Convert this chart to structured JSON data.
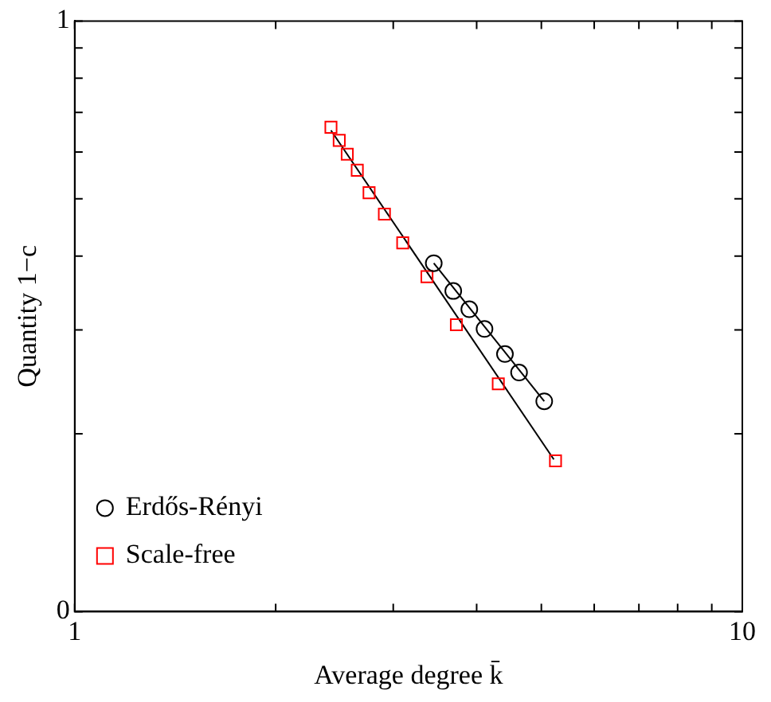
{
  "chart_data": {
    "type": "scatter",
    "xlabel": "Average degree k̄",
    "ylabel": "Quantity 1−c",
    "log": "xy",
    "xlim": [
      1,
      10
    ],
    "ylim": [
      0.1,
      1
    ],
    "xticks": [
      1,
      {
        "value": 2,
        "label": null
      },
      {
        "value": 3,
        "label": null
      },
      {
        "value": 4,
        "label": null
      },
      {
        "value": 5,
        "label": null
      },
      {
        "value": 6,
        "label": null
      },
      {
        "value": 7,
        "label": null
      },
      {
        "value": 8,
        "label": null
      },
      {
        "value": 9,
        "label": null
      },
      10
    ],
    "yticks": [
      {
        "value": 0.1,
        "label": "0"
      },
      {
        "value": 0.2,
        "label": null
      },
      {
        "value": 0.3,
        "label": null
      },
      {
        "value": 0.4,
        "label": null
      },
      {
        "value": 0.5,
        "label": null
      },
      {
        "value": 0.6,
        "label": null
      },
      {
        "value": 0.7,
        "label": null
      },
      {
        "value": 0.8,
        "label": null
      },
      {
        "value": 0.9,
        "label": null
      },
      1
    ],
    "legend": "bottom left",
    "series": [
      {
        "name": "Erdős-Rényi",
        "color": "#000000",
        "marker": "circle",
        "x": [
          3.45,
          3.69,
          3.9,
          4.11,
          4.41,
          4.63,
          5.05
        ],
        "values": [
          0.389,
          0.349,
          0.325,
          0.301,
          0.273,
          0.254,
          0.227
        ]
      },
      {
        "name": "Scale-free",
        "color": "#ff0000",
        "marker": "square",
        "x": [
          2.42,
          2.49,
          2.56,
          2.65,
          2.76,
          2.91,
          3.1,
          3.37,
          3.73,
          4.31,
          5.25
        ],
        "values": [
          0.661,
          0.628,
          0.595,
          0.559,
          0.512,
          0.471,
          0.421,
          0.369,
          0.306,
          0.243,
          0.18
        ]
      },
      {
        "type": "line",
        "color": "#000000",
        "marker": "none",
        "x": [
          3.45,
          5.05
        ],
        "values": [
          0.389,
          0.227
        ]
      },
      {
        "type": "line",
        "color": "#000000",
        "marker": "none",
        "x": [
          2.42,
          5.22
        ],
        "values": [
          0.653,
          0.181
        ]
      }
    ]
  }
}
